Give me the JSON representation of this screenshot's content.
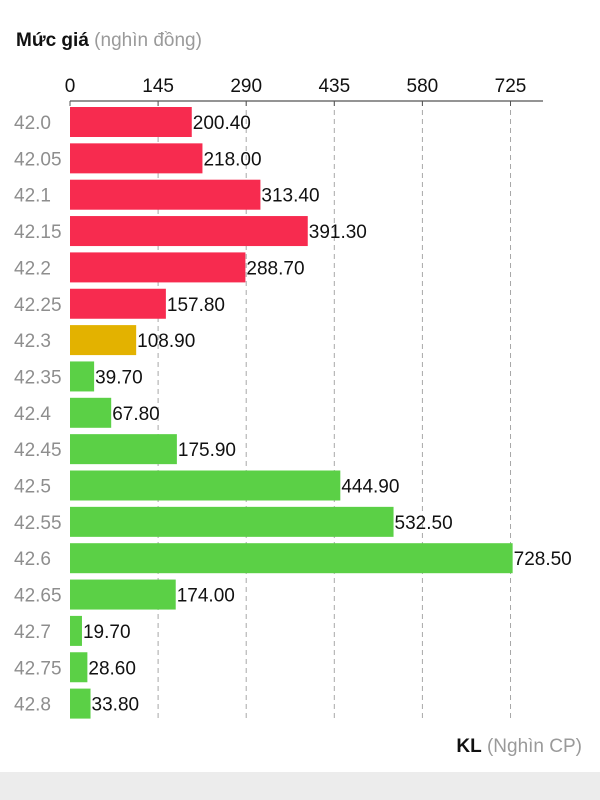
{
  "chart_data": {
    "type": "bar",
    "orientation": "horizontal",
    "ylabel_main": "Mức giá",
    "ylabel_unit": "(nghìn đồng)",
    "xlabel_main": "KL",
    "xlabel_unit": "(Nghìn CP)",
    "xlim": [
      0,
      790
    ],
    "xticks": [
      "0",
      "145",
      "290",
      "435",
      "580",
      "725"
    ],
    "xtick_values": [
      0,
      145,
      290,
      435,
      580,
      725
    ],
    "grid": "vertical dashed",
    "categories": [
      "42.0",
      "42.05",
      "42.1",
      "42.15",
      "42.2",
      "42.25",
      "42.3",
      "42.35",
      "42.4",
      "42.45",
      "42.5",
      "42.55",
      "42.6",
      "42.65",
      "42.7",
      "42.75",
      "42.8"
    ],
    "values": [
      200.4,
      218.0,
      313.4,
      391.3,
      288.7,
      157.8,
      108.9,
      39.7,
      67.8,
      175.9,
      444.9,
      532.5,
      728.5,
      174.0,
      19.7,
      28.6,
      33.8
    ],
    "value_labels": [
      "200.40",
      "218.00",
      "313.40",
      "391.30",
      "288.70",
      "157.80",
      "108.90",
      "39.70",
      "67.80",
      "175.90",
      "444.90",
      "532.50",
      "728.50",
      "174.00",
      "19.70",
      "28.60",
      "33.80"
    ],
    "colors": [
      "#f72b4f",
      "#f72b4f",
      "#f72b4f",
      "#f72b4f",
      "#f72b4f",
      "#f72b4f",
      "#e3b200",
      "#5bd046",
      "#5bd046",
      "#5bd046",
      "#5bd046",
      "#5bd046",
      "#5bd046",
      "#5bd046",
      "#5bd046",
      "#5bd046",
      "#5bd046"
    ]
  }
}
